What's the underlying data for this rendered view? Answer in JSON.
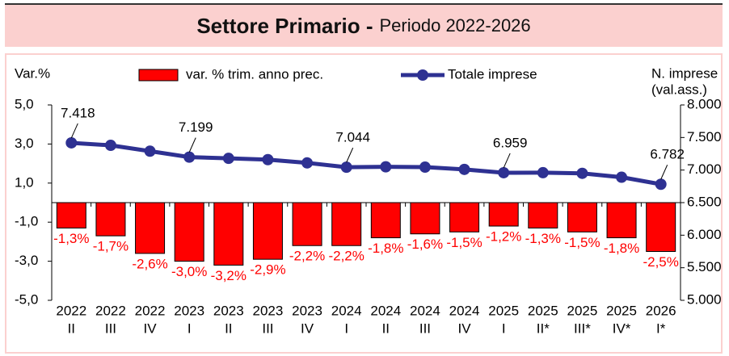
{
  "chart_data": {
    "type": "bar_line",
    "title": "Settore Primario -",
    "subtitle": "Periodo 2022-2026",
    "ylabel": "Var.%",
    "y2label": [
      "N. imprese",
      "(val.ass.)"
    ],
    "categories": [
      [
        "2022",
        "II"
      ],
      [
        "2022",
        "III"
      ],
      [
        "2022",
        "IV"
      ],
      [
        "2023",
        "I"
      ],
      [
        "2023",
        "II"
      ],
      [
        "2023",
        "III"
      ],
      [
        "2023",
        "IV"
      ],
      [
        "2024",
        "I"
      ],
      [
        "2024",
        "II"
      ],
      [
        "2024",
        "III"
      ],
      [
        "2024",
        "IV"
      ],
      [
        "2025",
        "I"
      ],
      [
        "2025",
        "II*"
      ],
      [
        "2025",
        "III*"
      ],
      [
        "2025",
        "IV*"
      ],
      [
        "2026",
        "I*"
      ]
    ],
    "series": [
      {
        "name": "var. % trim. anno prec.",
        "type": "bar",
        "color": "#ff0000",
        "values": [
          -1.3,
          -1.7,
          -2.6,
          -3.0,
          -3.2,
          -2.9,
          -2.2,
          -2.2,
          -1.8,
          -1.6,
          -1.5,
          -1.2,
          -1.3,
          -1.5,
          -1.8,
          -2.5
        ],
        "value_labels": [
          "-1,3%",
          "-1,7%",
          "-2,6%",
          "-3,0%",
          "-3,2%",
          "-2,9%",
          "-2,2%",
          "-2,2%",
          "-1,8%",
          "-1,6%",
          "-1,5%",
          "-1,2%",
          "-1,3%",
          "-1,5%",
          "-1,8%",
          "-2,5%"
        ]
      },
      {
        "name": "Totale imprese",
        "type": "line",
        "axis": "y2",
        "color": "#2e3192",
        "values": [
          7418,
          7380,
          7290,
          7199,
          7180,
          7160,
          7110,
          7044,
          7050,
          7045,
          7010,
          6959,
          6960,
          6950,
          6890,
          6782
        ],
        "value_labels": [
          "7.418",
          null,
          null,
          "7.199",
          null,
          null,
          null,
          "7.044",
          null,
          null,
          null,
          "6.959",
          null,
          null,
          null,
          "6.782"
        ]
      }
    ],
    "ylim": [
      -5,
      5
    ],
    "yticks": [
      {
        "value": -5,
        "label": "-5,0"
      },
      {
        "value": -3,
        "label": "-3,0"
      },
      {
        "value": -1,
        "label": "-1,0"
      },
      {
        "value": 1,
        "label": "1,0"
      },
      {
        "value": 3,
        "label": "3,0"
      },
      {
        "value": 5,
        "label": "5,0"
      }
    ],
    "y2lim": [
      5000,
      8000
    ],
    "y2ticks": [
      {
        "value": 5000,
        "label": "5.000"
      },
      {
        "value": 5500,
        "label": "5.500"
      },
      {
        "value": 6000,
        "label": "6.000"
      },
      {
        "value": 6500,
        "label": "6.500"
      },
      {
        "value": 7000,
        "label": "7.000"
      },
      {
        "value": 7500,
        "label": "7.500"
      },
      {
        "value": 8000,
        "label": "8.000"
      }
    ],
    "legend": "top"
  }
}
